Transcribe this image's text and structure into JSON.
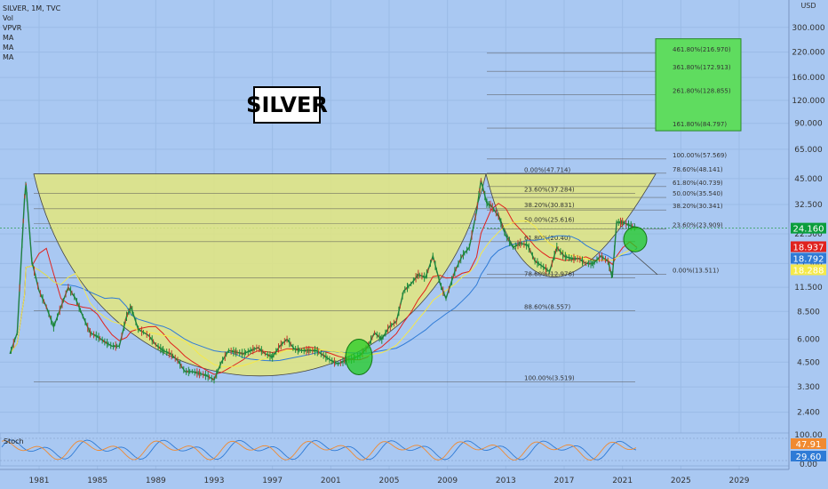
{
  "legend": {
    "symbol": "SILVER, 1M, TVC",
    "lines": [
      "Vol",
      "VPVR",
      "MA",
      "MA",
      "MA"
    ]
  },
  "title": "SILVER",
  "currency_label": "USD",
  "stoch_label": "Stoch",
  "colors": {
    "background": "#a9c8f2",
    "cup_fill": "#e3e67e",
    "target_box": "#5fdc5f",
    "price_badge": "#0b9e3c",
    "ma_red_badge": "#e0221d",
    "ma_blue_badge": "#2f7bd6",
    "ma_yellow_badge": "#f5e94a",
    "stoch_orange": "#f08a31",
    "stoch_blue": "#2f7bd6"
  },
  "chart_data": {
    "type": "line",
    "y_scale": "log",
    "ylim": [
      2.0,
      320.0
    ],
    "y_ticks": [
      "300.000",
      "220.000",
      "160.000",
      "120.000",
      "90.000",
      "65.000",
      "45.000",
      "32.500",
      "22.500",
      "15.500",
      "11.500",
      "8.500",
      "6.000",
      "4.500",
      "3.300",
      "2.400"
    ],
    "x_ticks": [
      "1981",
      "1985",
      "1989",
      "1993",
      "1997",
      "2001",
      "2005",
      "2009",
      "2013",
      "2017",
      "2021",
      "2025",
      "2029"
    ],
    "price_series": {
      "name": "",
      "x": [
        1979.0,
        1979.5,
        1980.0,
        1980.1,
        1980.5,
        1981.0,
        1981.5,
        1982.0,
        1982.5,
        1983.0,
        1983.5,
        1984.0,
        1984.5,
        1985.0,
        1985.5,
        1986.0,
        1986.5,
        1987.0,
        1987.3,
        1987.8,
        1988.5,
        1989.0,
        1989.5,
        1990.0,
        1990.5,
        1991.0,
        1991.5,
        1992.0,
        1992.5,
        1993.0,
        1993.5,
        1994.0,
        1994.5,
        1995.0,
        1995.5,
        1996.0,
        1996.5,
        1997.0,
        1997.5,
        1998.0,
        1998.5,
        1999.0,
        1999.5,
        2000.0,
        2000.5,
        2001.0,
        2001.5,
        2002.0,
        2002.5,
        2003.0,
        2003.5,
        2004.0,
        2004.5,
        2005.0,
        2005.5,
        2006.0,
        2006.5,
        2007.0,
        2007.5,
        2008.0,
        2008.5,
        2008.9,
        2009.5,
        2010.0,
        2010.5,
        2011.0,
        2011.3,
        2011.7,
        2012.0,
        2012.5,
        2013.0,
        2013.5,
        2014.0,
        2014.5,
        2015.0,
        2015.5,
        2016.0,
        2016.5,
        2017.0,
        2017.5,
        2018.0,
        2018.5,
        2019.0,
        2019.5,
        2020.0,
        2020.3,
        2020.6,
        2021.0,
        2021.5,
        2022.0
      ],
      "values": [
        5.0,
        6.5,
        35.0,
        42.0,
        16.0,
        11.0,
        9.0,
        7.0,
        9.0,
        11.5,
        10.0,
        8.0,
        6.5,
        6.2,
        5.8,
        5.5,
        5.5,
        8.0,
        9.0,
        6.8,
        6.3,
        5.6,
        5.2,
        5.0,
        4.6,
        4.0,
        4.0,
        3.9,
        3.8,
        3.6,
        4.5,
        5.2,
        5.1,
        5.0,
        5.2,
        5.4,
        5.0,
        4.8,
        5.5,
        6.0,
        5.3,
        5.2,
        5.2,
        5.2,
        4.9,
        4.6,
        4.4,
        4.6,
        4.7,
        4.9,
        5.4,
        6.5,
        6.0,
        7.0,
        7.5,
        11.0,
        12.0,
        13.5,
        13.0,
        17.0,
        12.0,
        10.0,
        14.0,
        17.0,
        19.0,
        30.0,
        44.0,
        33.0,
        32.0,
        28.0,
        22.0,
        19.0,
        20.0,
        19.5,
        16.0,
        15.0,
        14.0,
        19.0,
        17.0,
        16.5,
        16.5,
        15.5,
        15.5,
        17.0,
        16.0,
        13.0,
        26.0,
        26.0,
        25.0,
        24.2
      ]
    },
    "moving_averages": [
      {
        "color": "#e0221d",
        "last": 18.937
      },
      {
        "color": "#2f7bd6",
        "last": 18.792
      },
      {
        "color": "#f5e94a",
        "last": 18.288
      }
    ],
    "price_last": "24.160",
    "badges": {
      "price": "24.160",
      "ma_red": "18.937",
      "ma_blue": "18.792",
      "ma_yellow": "18.288"
    },
    "fib_left": [
      {
        "label": "0.00%(47.714)",
        "value": 47.714
      },
      {
        "label": "23.60%(37.284)",
        "value": 37.284
      },
      {
        "label": "38.20%(30.831)",
        "value": 30.831
      },
      {
        "label": "50.00%(25.616)",
        "value": 25.616
      },
      {
        "label": "61.80%(20.40)",
        "value": 20.4
      },
      {
        "label": "78.60%(12.976)",
        "value": 12.976
      },
      {
        "label": "88.60%(8.557)",
        "value": 8.557
      },
      {
        "label": "100.00%(3.519)",
        "value": 3.519
      }
    ],
    "fib_right": [
      {
        "label": "461.80%(216.970)",
        "value": 216.97
      },
      {
        "label": "361.80%(172.913)",
        "value": 172.913
      },
      {
        "label": "261.80%(128.855)",
        "value": 128.855
      },
      {
        "label": "161.80%(84.797)",
        "value": 84.797
      },
      {
        "label": "100.00%(57.569)",
        "value": 57.569
      },
      {
        "label": "78.60%(48.141)",
        "value": 48.141
      },
      {
        "label": "61.80%(40.739)",
        "value": 40.739
      },
      {
        "label": "50.00%(35.540)",
        "value": 35.54
      },
      {
        "label": "38.20%(30.341)",
        "value": 30.341
      },
      {
        "label": "23.60%(23.909)",
        "value": 23.909
      },
      {
        "label": "0.00%(13.511)",
        "value": 13.511
      }
    ],
    "stoch": {
      "y_ticks": [
        "100.00",
        "0.00"
      ],
      "k_last": "47.91",
      "d_last": "29.60"
    }
  }
}
